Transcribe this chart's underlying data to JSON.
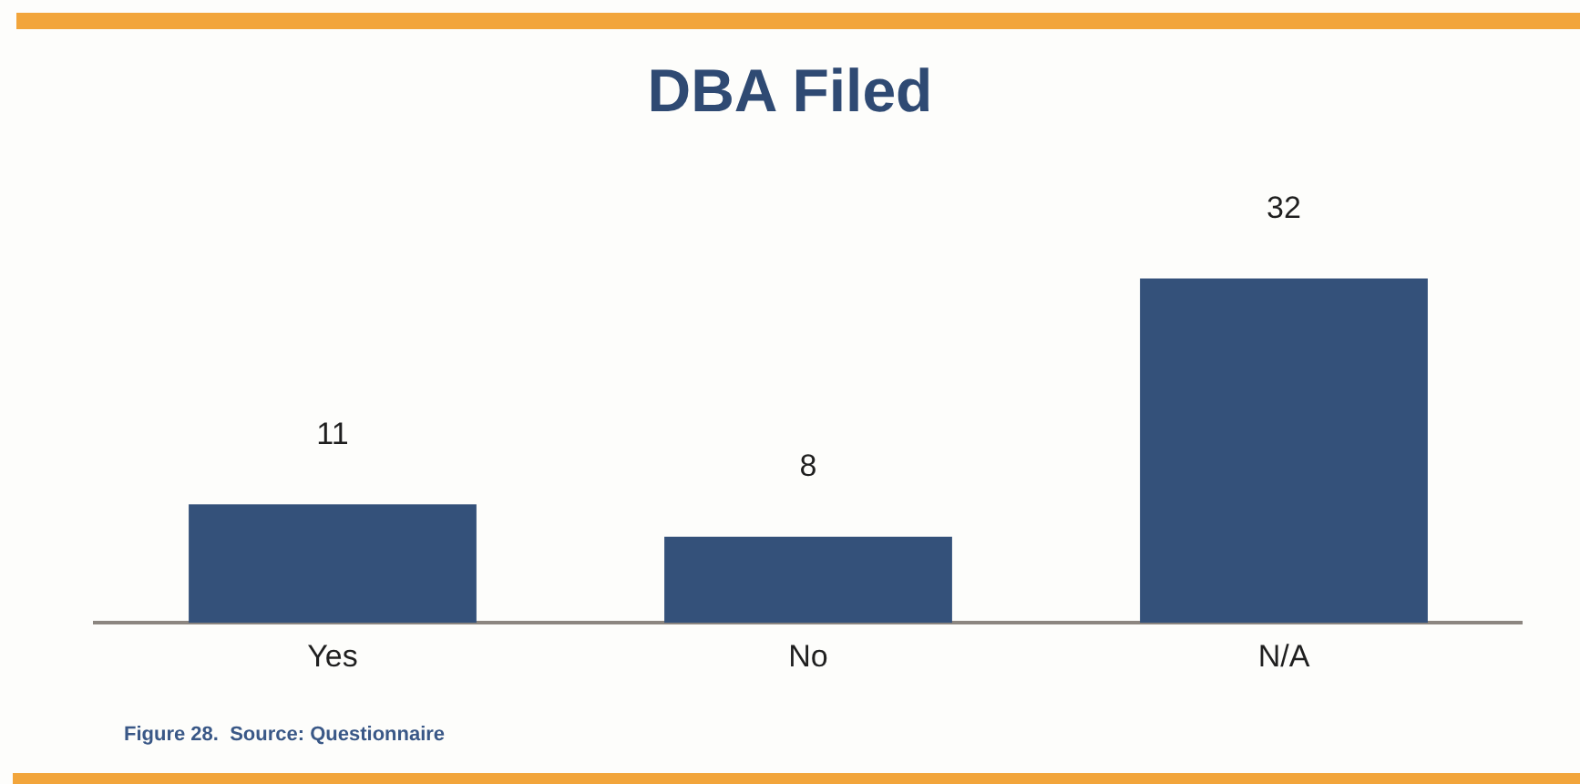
{
  "chart_data": {
    "type": "bar",
    "title": "DBA Filed",
    "categories": [
      "Yes",
      "No",
      "N/A"
    ],
    "values": [
      11,
      8,
      32
    ],
    "color": "#34517a",
    "data_labels": true,
    "tick_labels": "x",
    "annotations": [
      "Figure 28.  Source: Questionnaire"
    ]
  }
}
